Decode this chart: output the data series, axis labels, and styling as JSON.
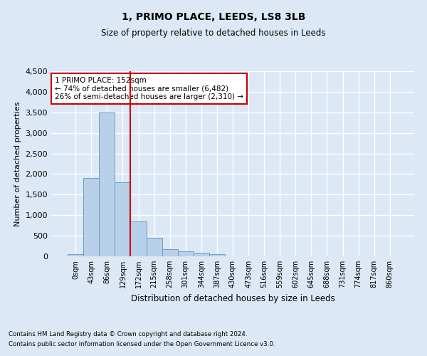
{
  "title": "1, PRIMO PLACE, LEEDS, LS8 3LB",
  "subtitle": "Size of property relative to detached houses in Leeds",
  "xlabel": "Distribution of detached houses by size in Leeds",
  "ylabel": "Number of detached properties",
  "footnote1": "Contains HM Land Registry data © Crown copyright and database right 2024.",
  "footnote2": "Contains public sector information licensed under the Open Government Licence v3.0.",
  "annotation_line1": "1 PRIMO PLACE: 152sqm",
  "annotation_line2": "← 74% of detached houses are smaller (6,482)",
  "annotation_line3": "26% of semi-detached houses are larger (2,310) →",
  "bar_color": "#b8d0ea",
  "bar_edge_color": "#6a9fc0",
  "vline_color": "#cc0000",
  "vline_x": 3.5,
  "categories": [
    "0sqm",
    "43sqm",
    "86sqm",
    "129sqm",
    "172sqm",
    "215sqm",
    "258sqm",
    "301sqm",
    "344sqm",
    "387sqm",
    "430sqm",
    "473sqm",
    "516sqm",
    "559sqm",
    "602sqm",
    "645sqm",
    "688sqm",
    "731sqm",
    "774sqm",
    "817sqm",
    "860sqm"
  ],
  "values": [
    50,
    1900,
    3500,
    1800,
    850,
    450,
    175,
    120,
    80,
    60,
    0,
    0,
    0,
    0,
    0,
    0,
    0,
    0,
    0,
    0,
    0
  ],
  "ylim": [
    0,
    4500
  ],
  "yticks": [
    0,
    500,
    1000,
    1500,
    2000,
    2500,
    3000,
    3500,
    4000,
    4500
  ],
  "background_color": "#dce8f5",
  "plot_bg_color": "#dce8f5",
  "grid_color": "#ffffff",
  "annotation_box_color": "#ffffff",
  "annotation_box_edge": "#cc0000"
}
